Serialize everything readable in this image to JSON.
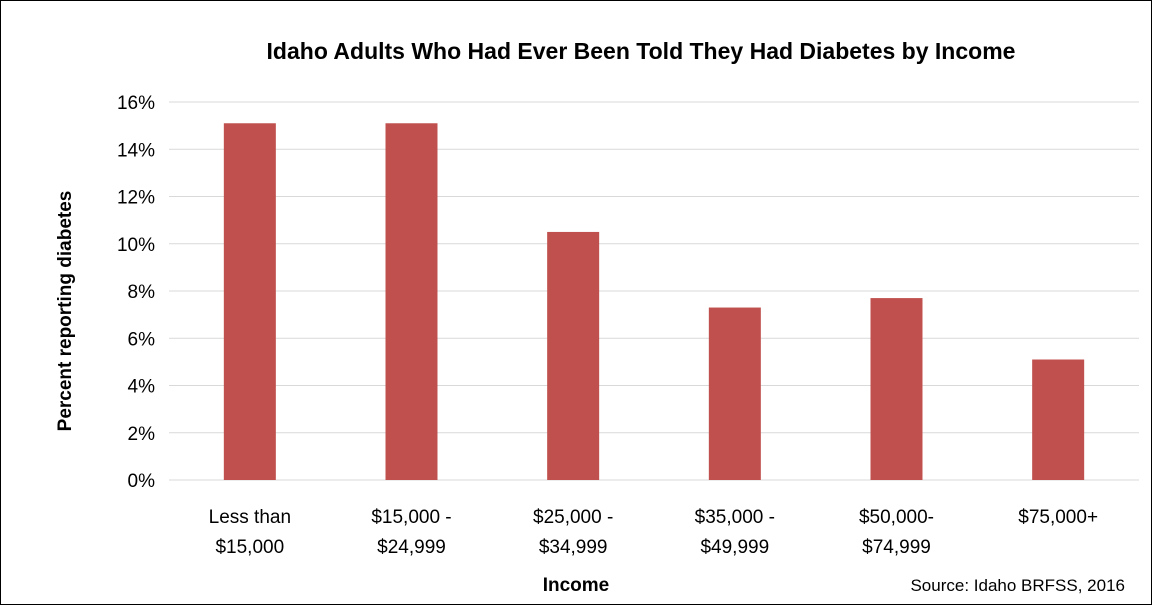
{
  "chart_data": {
    "type": "bar",
    "title": "Idaho Adults Who Had Ever Been Told They Had Diabetes by Income",
    "xlabel": "Income",
    "ylabel": "Percent reporting diabetes",
    "categories": [
      [
        "Less than",
        "$15,000"
      ],
      [
        "$15,000 -",
        "$24,999"
      ],
      [
        "$25,000 -",
        "$34,999"
      ],
      [
        "$35,000 -",
        "$49,999"
      ],
      [
        "$50,000-",
        "$74,999"
      ],
      [
        "$75,000+"
      ]
    ],
    "values": [
      15.1,
      15.1,
      10.5,
      7.3,
      7.7,
      5.1
    ],
    "ylim": [
      0,
      16
    ],
    "yticks": [
      "0%",
      "2%",
      "4%",
      "6%",
      "8%",
      "10%",
      "12%",
      "14%",
      "16%"
    ],
    "grid": true,
    "bar_color": "#c0504d",
    "source": "Source: Idaho BRFSS, 2016"
  }
}
